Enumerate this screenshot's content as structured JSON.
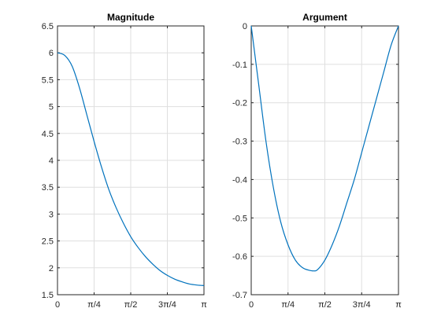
{
  "chart_data": [
    {
      "type": "line",
      "title": "Magnitude",
      "xlabel": "",
      "ylabel": "",
      "xlim": [
        0,
        3.14159
      ],
      "ylim": [
        1.5,
        6.5
      ],
      "xticks": [
        {
          "value": 0,
          "label": "0"
        },
        {
          "value": 0.7854,
          "label": "π/4"
        },
        {
          "value": 1.5708,
          "label": "π/2"
        },
        {
          "value": 2.3562,
          "label": "3π/4"
        },
        {
          "value": 3.14159,
          "label": "π"
        }
      ],
      "yticks": [
        {
          "value": 1.5,
          "label": "1.5"
        },
        {
          "value": 2,
          "label": "2"
        },
        {
          "value": 2.5,
          "label": "2.5"
        },
        {
          "value": 3,
          "label": "3"
        },
        {
          "value": 3.5,
          "label": "3.5"
        },
        {
          "value": 4,
          "label": "4"
        },
        {
          "value": 4.5,
          "label": "4.5"
        },
        {
          "value": 5,
          "label": "5"
        },
        {
          "value": 5.5,
          "label": "5.5"
        },
        {
          "value": 6,
          "label": "6"
        },
        {
          "value": 6.5,
          "label": "6.5"
        }
      ],
      "grid": true,
      "color": "#0072bd",
      "series": [
        {
          "x": [
            0,
            0.1571,
            0.3142,
            0.4712,
            0.6283,
            0.7854,
            0.9425,
            1.0996,
            1.2566,
            1.4137,
            1.5708,
            1.7279,
            1.885,
            2.042,
            2.1991,
            2.3562,
            2.5133,
            2.6704,
            2.8274,
            2.9845,
            3.1416
          ],
          "y": [
            6.0,
            5.95,
            5.75,
            5.35,
            4.85,
            4.35,
            3.88,
            3.46,
            3.12,
            2.83,
            2.58,
            2.38,
            2.21,
            2.07,
            1.95,
            1.86,
            1.79,
            1.74,
            1.7,
            1.68,
            1.67
          ]
        }
      ]
    },
    {
      "type": "line",
      "title": "Argument",
      "xlabel": "",
      "ylabel": "",
      "xlim": [
        0,
        3.14159
      ],
      "ylim": [
        -0.7,
        0
      ],
      "xticks": [
        {
          "value": 0,
          "label": "0"
        },
        {
          "value": 0.7854,
          "label": "π/4"
        },
        {
          "value": 1.5708,
          "label": "π/2"
        },
        {
          "value": 2.3562,
          "label": "3π/4"
        },
        {
          "value": 3.14159,
          "label": "π"
        }
      ],
      "yticks": [
        {
          "value": -0.7,
          "label": "-0.7"
        },
        {
          "value": -0.6,
          "label": "-0.6"
        },
        {
          "value": -0.5,
          "label": "-0.5"
        },
        {
          "value": -0.4,
          "label": "-0.4"
        },
        {
          "value": -0.3,
          "label": "-0.3"
        },
        {
          "value": -0.2,
          "label": "-0.2"
        },
        {
          "value": -0.1,
          "label": "-0.1"
        },
        {
          "value": 0,
          "label": "0"
        }
      ],
      "grid": true,
      "color": "#0072bd",
      "series": [
        {
          "x": [
            0,
            0.1571,
            0.3142,
            0.4712,
            0.6283,
            0.7854,
            0.9425,
            1.0996,
            1.2566,
            1.3352,
            1.4137,
            1.5708,
            1.7279,
            1.885,
            2.042,
            2.1991,
            2.3562,
            2.5133,
            2.6704,
            2.8274,
            2.9845,
            3.1416
          ],
          "y": [
            0,
            -0.15,
            -0.3,
            -0.42,
            -0.51,
            -0.57,
            -0.61,
            -0.63,
            -0.637,
            -0.638,
            -0.635,
            -0.61,
            -0.57,
            -0.52,
            -0.46,
            -0.4,
            -0.33,
            -0.26,
            -0.19,
            -0.12,
            -0.05,
            0
          ]
        }
      ]
    }
  ]
}
